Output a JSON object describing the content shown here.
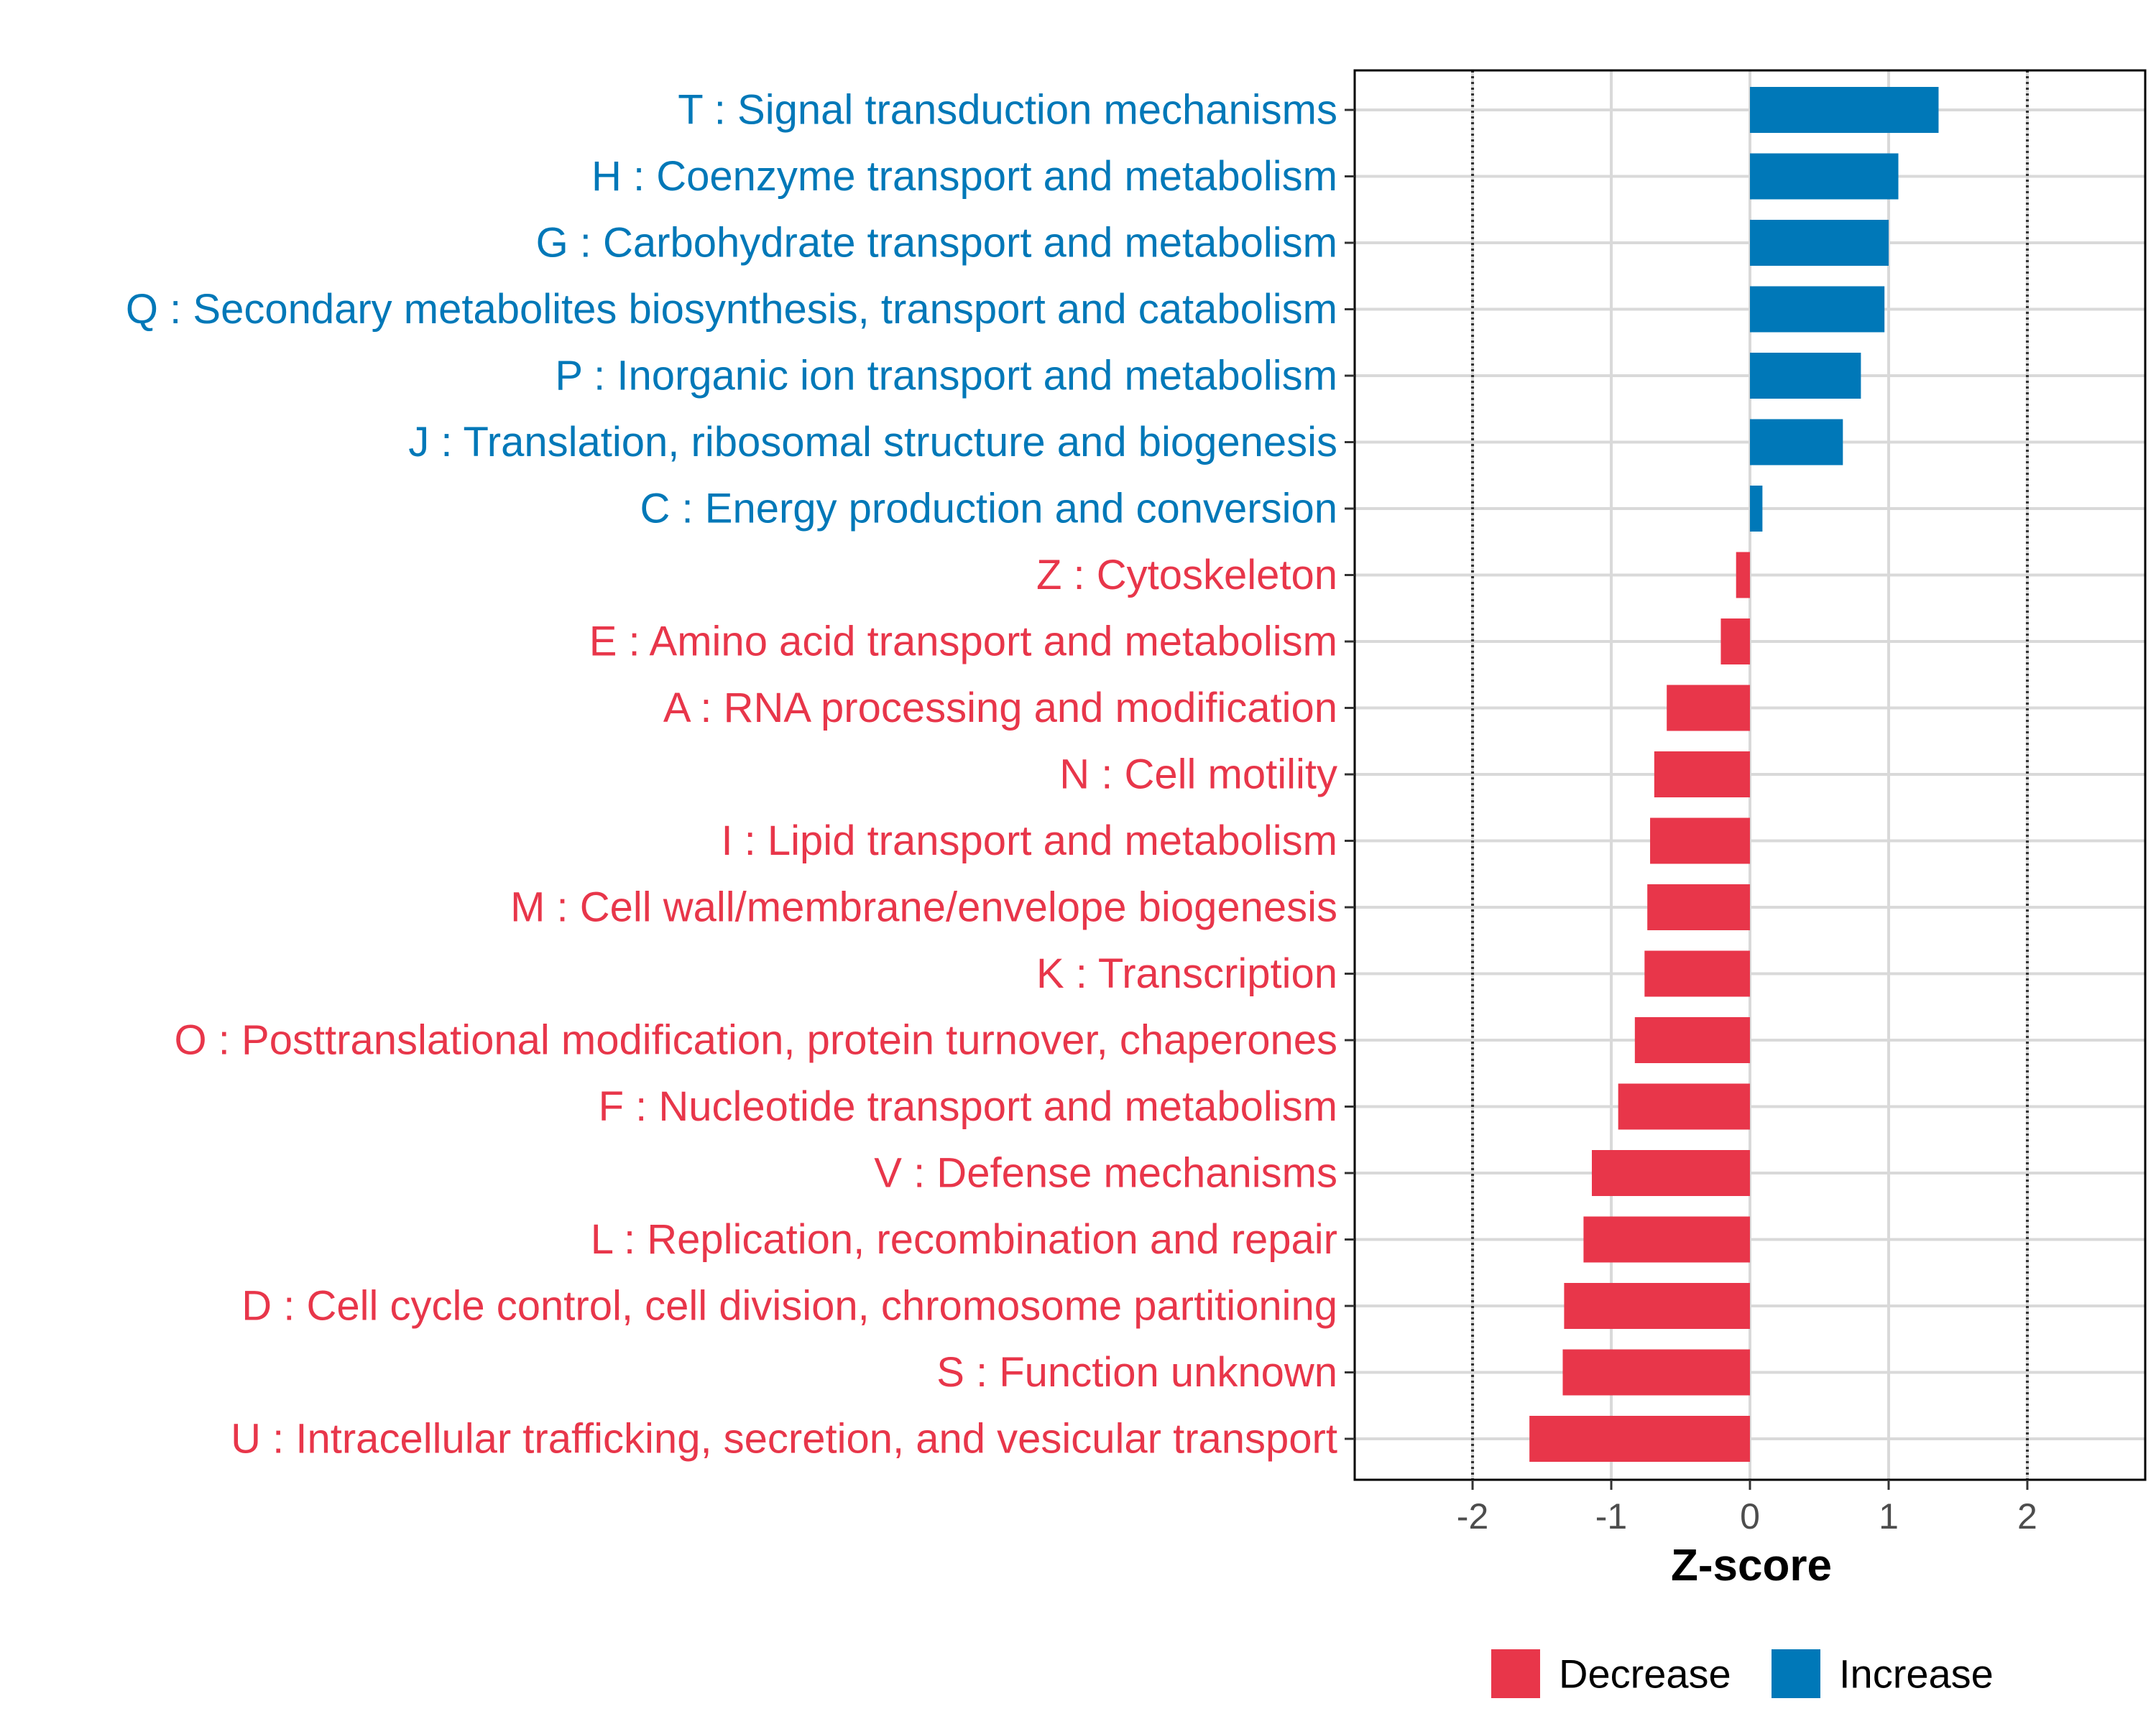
{
  "chart_data": {
    "type": "bar",
    "orientation": "horizontal",
    "xlabel": "Z-score",
    "xlim": [
      -2.85,
      2.85
    ],
    "xticks": [
      -2,
      -1,
      0,
      1,
      2
    ],
    "xtick_labels": [
      "-2",
      "-1",
      "0",
      "1",
      "2"
    ],
    "reference_lines": [
      -2,
      2
    ],
    "grid": true,
    "categories": [
      "T : Signal transduction mechanisms",
      "H : Coenzyme transport and metabolism",
      "G : Carbohydrate transport and metabolism",
      "Q : Secondary metabolites biosynthesis, transport and catabolism",
      "P : Inorganic ion transport and metabolism",
      "J : Translation, ribosomal structure and biogenesis",
      "C : Energy production and conversion",
      "Z : Cytoskeleton",
      "E : Amino acid transport and metabolism",
      "A : RNA processing and modification",
      "N : Cell motility",
      "I : Lipid transport and metabolism",
      "M : Cell wall/membrane/envelope biogenesis",
      "K : Transcription",
      "O : Posttranslational modification, protein turnover, chaperones",
      "F : Nucleotide transport and metabolism",
      "V : Defense mechanisms",
      "L : Replication, recombination and repair",
      "D : Cell cycle control, cell division, chromosome partitioning",
      "S : Function unknown",
      "U : Intracellular trafficking, secretion, and vesicular transport"
    ],
    "values": [
      1.36,
      1.07,
      1.0,
      0.97,
      0.8,
      0.67,
      0.09,
      -0.1,
      -0.21,
      -0.6,
      -0.69,
      -0.72,
      -0.74,
      -0.76,
      -0.83,
      -0.95,
      -1.14,
      -1.2,
      -1.34,
      -1.35,
      -1.59
    ],
    "groups": [
      "Increase",
      "Increase",
      "Increase",
      "Increase",
      "Increase",
      "Increase",
      "Increase",
      "Decrease",
      "Decrease",
      "Decrease",
      "Decrease",
      "Decrease",
      "Decrease",
      "Decrease",
      "Decrease",
      "Decrease",
      "Decrease",
      "Decrease",
      "Decrease",
      "Decrease",
      "Decrease"
    ],
    "legend": {
      "position": "bottom",
      "entries": [
        {
          "label": "Decrease",
          "color": "#E8364A"
        },
        {
          "label": "Increase",
          "color": "#0078B8"
        }
      ]
    },
    "colors": {
      "Decrease": "#E8364A",
      "Increase": "#0078B8"
    }
  }
}
